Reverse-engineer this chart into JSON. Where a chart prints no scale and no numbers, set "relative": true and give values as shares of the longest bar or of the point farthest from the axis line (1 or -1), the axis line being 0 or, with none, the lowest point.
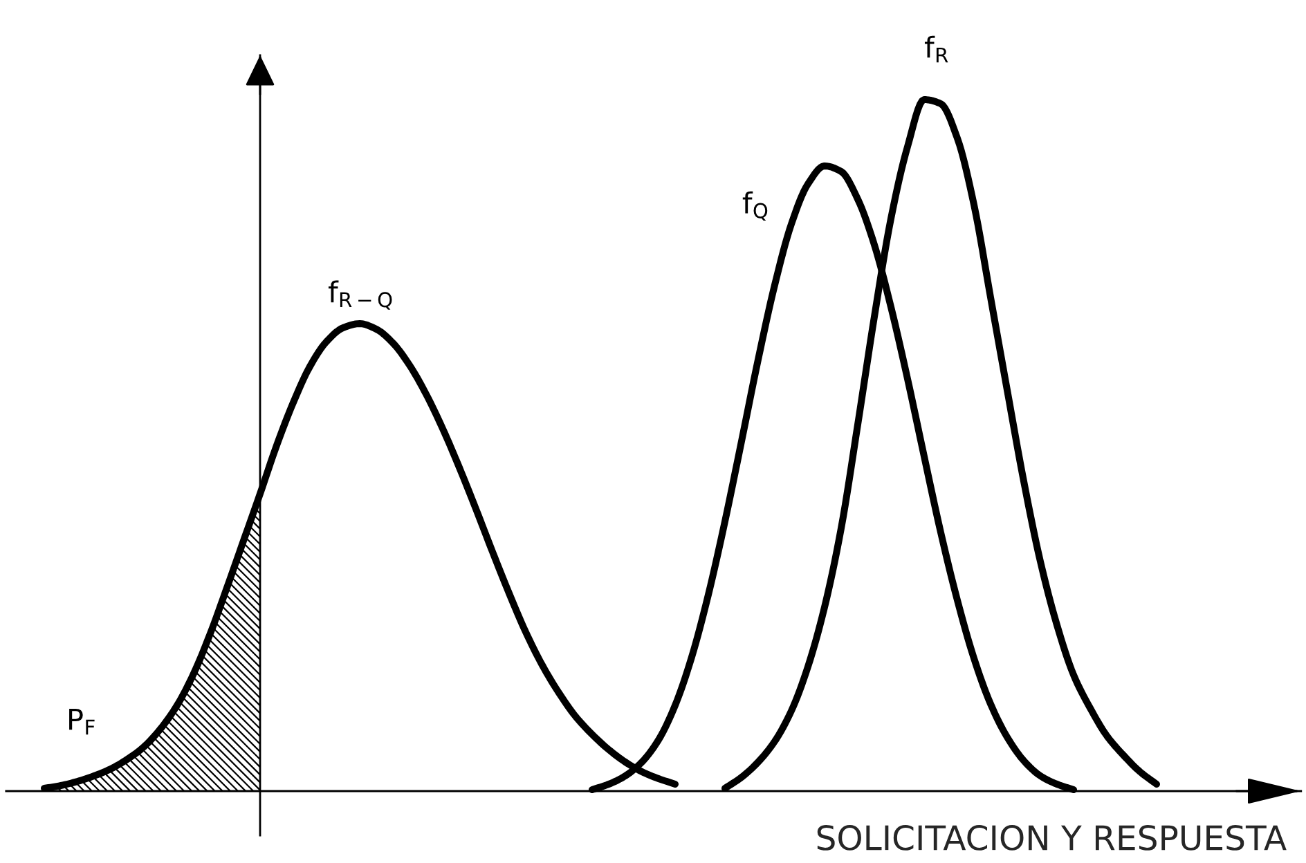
{
  "chart_data": {
    "type": "line",
    "relative": true,
    "xlabel": "SOLICITACION Y RESPUESTA",
    "categories": [
      null,
      null,
      null,
      null,
      null,
      null,
      null,
      null,
      null,
      null,
      null,
      null,
      null,
      null,
      null,
      null,
      null,
      null,
      null,
      null,
      null,
      null,
      null,
      null,
      null,
      null,
      null,
      null,
      null,
      null,
      null,
      null,
      null,
      null,
      null,
      null,
      null,
      null,
      null,
      null,
      null,
      null,
      null,
      null,
      null,
      null,
      null,
      null,
      null,
      null,
      null,
      null,
      null,
      null,
      null,
      null,
      null,
      null,
      null,
      null,
      null,
      null,
      null,
      null,
      null,
      null,
      null,
      null,
      null,
      null,
      null,
      null,
      null,
      null,
      null,
      null,
      null,
      null
    ],
    "series": [
      {
        "name": "f$_{R−Q}$",
        "color": "#000000",
        "values": [
          null,
          null,
          0.004,
          0.008,
          0.014,
          0.022,
          0.032,
          0.046,
          0.064,
          0.09,
          0.124,
          0.17,
          0.228,
          0.294,
          0.362,
          0.43,
          0.5,
          0.562,
          0.614,
          0.65,
          0.67,
          0.676,
          0.668,
          0.648,
          0.616,
          0.574,
          0.524,
          0.468,
          0.408,
          0.346,
          0.286,
          0.23,
          0.182,
          0.142,
          0.108,
          0.082,
          0.06,
          0.042,
          0.028,
          0.018,
          0.01,
          null,
          null,
          null,
          null,
          null,
          null,
          null,
          null,
          null,
          null,
          null,
          null,
          null,
          null,
          null,
          null,
          null,
          null,
          null,
          null,
          null,
          null,
          null,
          null,
          null,
          null,
          null,
          null,
          null,
          null,
          null,
          null,
          null,
          null,
          null,
          null,
          null
        ]
      },
      {
        "name": "f$_{Q}$",
        "color": "#000000",
        "values": [
          null,
          null,
          null,
          null,
          null,
          null,
          null,
          null,
          null,
          null,
          null,
          null,
          null,
          null,
          null,
          null,
          null,
          null,
          null,
          null,
          null,
          null,
          null,
          null,
          null,
          null,
          null,
          null,
          null,
          null,
          null,
          null,
          null,
          null,
          null,
          0.002,
          0.01,
          0.022,
          0.042,
          0.074,
          0.124,
          0.194,
          0.284,
          0.39,
          0.506,
          0.624,
          0.732,
          0.82,
          0.878,
          0.904,
          0.896,
          0.856,
          0.79,
          0.7,
          0.596,
          0.484,
          0.374,
          0.276,
          0.192,
          0.126,
          0.078,
          0.044,
          0.022,
          0.01,
          0.002,
          null,
          null,
          null,
          null,
          null,
          null,
          null,
          null,
          null,
          null,
          null,
          null,
          null
        ]
      },
      {
        "name": "f$_{R}$",
        "color": "#000000",
        "values": [
          null,
          null,
          null,
          null,
          null,
          null,
          null,
          null,
          null,
          null,
          null,
          null,
          null,
          null,
          null,
          null,
          null,
          null,
          null,
          null,
          null,
          null,
          null,
          null,
          null,
          null,
          null,
          null,
          null,
          null,
          null,
          null,
          null,
          null,
          null,
          null,
          null,
          null,
          null,
          null,
          null,
          null,
          null,
          0.004,
          0.02,
          0.042,
          0.072,
          0.116,
          0.18,
          0.266,
          0.38,
          0.53,
          0.686,
          0.828,
          0.932,
          1.0,
          0.994,
          0.944,
          0.848,
          0.714,
          0.58,
          0.448,
          0.332,
          0.24,
          0.168,
          0.12,
          0.08,
          0.052,
          0.028,
          0.01,
          null,
          null,
          null,
          null,
          null,
          null,
          null,
          null
        ]
      },
      {
        "name": "P$_{F}$",
        "type": "area",
        "color": "#000000",
        "values": [
          null,
          null,
          0.004,
          0.008,
          0.014,
          0.022,
          0.032,
          0.046,
          0.064,
          0.09,
          0.124,
          0.17,
          0.228,
          0.294,
          0.362,
          0.43,
          null,
          null,
          null,
          null,
          null,
          null,
          null,
          null,
          null,
          null,
          null,
          null,
          null,
          null,
          null,
          null,
          null,
          null,
          null,
          null,
          null,
          null,
          null,
          null,
          null,
          null,
          null,
          null,
          null,
          null,
          null,
          null,
          null,
          null,
          null,
          null,
          null,
          null,
          null,
          null,
          null,
          null,
          null,
          null,
          null,
          null,
          null,
          null,
          null,
          null,
          null,
          null,
          null,
          null,
          null,
          null,
          null,
          null,
          null,
          null,
          null,
          null
        ]
      }
    ]
  }
}
